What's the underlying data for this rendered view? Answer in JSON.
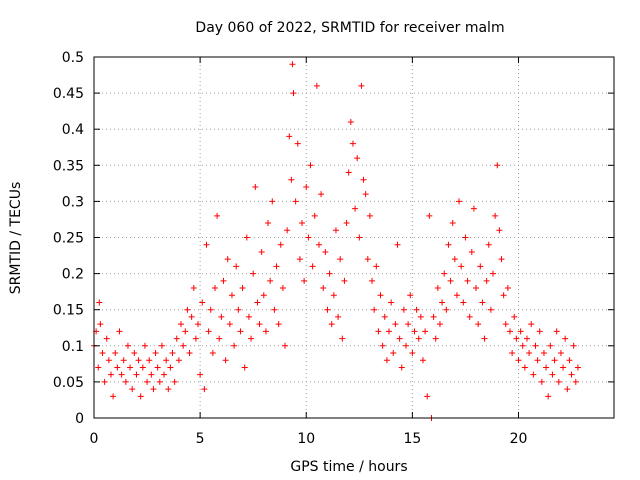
{
  "chart_data": {
    "type": "scatter",
    "title": "Day 060 of 2022, SRMTID for receiver malm",
    "xlabel": "GPS time / hours",
    "ylabel": "SRMTID / TECUs",
    "xlim": [
      0,
      24.5
    ],
    "ylim": [
      0,
      0.5
    ],
    "xticks": [
      0,
      5,
      10,
      15,
      20
    ],
    "xtick_labels": [
      "0",
      "5",
      "10",
      "15",
      "20"
    ],
    "yticks": [
      0,
      0.05,
      0.1,
      0.15,
      0.2,
      0.25,
      0.3,
      0.35,
      0.4,
      0.45,
      0.5
    ],
    "ytick_labels": [
      "0",
      "0.05",
      "0.1",
      "0.15",
      "0.2",
      "0.25",
      "0.3",
      "0.35",
      "0.4",
      "0.45",
      "0.5"
    ],
    "grid": true,
    "marker": "+",
    "series": [
      {
        "name": "SRMTID",
        "color": "#ff0000",
        "points": [
          [
            0.0,
            0.1
          ],
          [
            0.1,
            0.12
          ],
          [
            0.2,
            0.07
          ],
          [
            0.25,
            0.16
          ],
          [
            0.3,
            0.13
          ],
          [
            0.4,
            0.09
          ],
          [
            0.5,
            0.05
          ],
          [
            0.6,
            0.11
          ],
          [
            0.7,
            0.08
          ],
          [
            0.8,
            0.06
          ],
          [
            0.9,
            0.03
          ],
          [
            1.0,
            0.09
          ],
          [
            1.1,
            0.07
          ],
          [
            1.2,
            0.12
          ],
          [
            1.3,
            0.06
          ],
          [
            1.4,
            0.08
          ],
          [
            1.5,
            0.05
          ],
          [
            1.6,
            0.1
          ],
          [
            1.7,
            0.07
          ],
          [
            1.8,
            0.04
          ],
          [
            1.9,
            0.09
          ],
          [
            2.0,
            0.06
          ],
          [
            2.1,
            0.08
          ],
          [
            2.2,
            0.03
          ],
          [
            2.3,
            0.07
          ],
          [
            2.4,
            0.1
          ],
          [
            2.5,
            0.05
          ],
          [
            2.6,
            0.08
          ],
          [
            2.7,
            0.06
          ],
          [
            2.8,
            0.04
          ],
          [
            2.9,
            0.09
          ],
          [
            3.0,
            0.07
          ],
          [
            3.1,
            0.05
          ],
          [
            3.2,
            0.1
          ],
          [
            3.3,
            0.06
          ],
          [
            3.4,
            0.08
          ],
          [
            3.5,
            0.04
          ],
          [
            3.6,
            0.07
          ],
          [
            3.7,
            0.09
          ],
          [
            3.8,
            0.05
          ],
          [
            3.9,
            0.11
          ],
          [
            4.0,
            0.08
          ],
          [
            4.1,
            0.13
          ],
          [
            4.2,
            0.1
          ],
          [
            4.3,
            0.12
          ],
          [
            4.4,
            0.15
          ],
          [
            4.5,
            0.09
          ],
          [
            4.6,
            0.14
          ],
          [
            4.7,
            0.18
          ],
          [
            4.8,
            0.11
          ],
          [
            4.9,
            0.13
          ],
          [
            5.0,
            0.06
          ],
          [
            5.1,
            0.16
          ],
          [
            5.2,
            0.04
          ],
          [
            5.3,
            0.24
          ],
          [
            5.4,
            0.12
          ],
          [
            5.5,
            0.15
          ],
          [
            5.6,
            0.09
          ],
          [
            5.7,
            0.18
          ],
          [
            5.8,
            0.28
          ],
          [
            5.9,
            0.11
          ],
          [
            6.0,
            0.14
          ],
          [
            6.1,
            0.19
          ],
          [
            6.2,
            0.08
          ],
          [
            6.3,
            0.22
          ],
          [
            6.4,
            0.13
          ],
          [
            6.5,
            0.17
          ],
          [
            6.6,
            0.1
          ],
          [
            6.7,
            0.21
          ],
          [
            6.8,
            0.15
          ],
          [
            6.9,
            0.12
          ],
          [
            7.0,
            0.18
          ],
          [
            7.1,
            0.07
          ],
          [
            7.2,
            0.25
          ],
          [
            7.3,
            0.14
          ],
          [
            7.4,
            0.11
          ],
          [
            7.5,
            0.2
          ],
          [
            7.6,
            0.32
          ],
          [
            7.7,
            0.16
          ],
          [
            7.8,
            0.13
          ],
          [
            7.9,
            0.23
          ],
          [
            8.0,
            0.17
          ],
          [
            8.1,
            0.12
          ],
          [
            8.2,
            0.27
          ],
          [
            8.3,
            0.19
          ],
          [
            8.4,
            0.3
          ],
          [
            8.5,
            0.15
          ],
          [
            8.6,
            0.21
          ],
          [
            8.7,
            0.13
          ],
          [
            8.8,
            0.24
          ],
          [
            8.9,
            0.18
          ],
          [
            9.0,
            0.1
          ],
          [
            9.1,
            0.26
          ],
          [
            9.2,
            0.39
          ],
          [
            9.3,
            0.33
          ],
          [
            9.35,
            0.49
          ],
          [
            9.4,
            0.45
          ],
          [
            9.5,
            0.3
          ],
          [
            9.6,
            0.38
          ],
          [
            9.7,
            0.22
          ],
          [
            9.8,
            0.27
          ],
          [
            9.9,
            0.19
          ],
          [
            10.0,
            0.32
          ],
          [
            10.1,
            0.25
          ],
          [
            10.2,
            0.35
          ],
          [
            10.3,
            0.21
          ],
          [
            10.4,
            0.28
          ],
          [
            10.5,
            0.46
          ],
          [
            10.6,
            0.24
          ],
          [
            10.7,
            0.31
          ],
          [
            10.8,
            0.18
          ],
          [
            10.9,
            0.23
          ],
          [
            11.0,
            0.15
          ],
          [
            11.1,
            0.2
          ],
          [
            11.2,
            0.13
          ],
          [
            11.3,
            0.17
          ],
          [
            11.4,
            0.26
          ],
          [
            11.5,
            0.14
          ],
          [
            11.6,
            0.22
          ],
          [
            11.7,
            0.11
          ],
          [
            11.8,
            0.19
          ],
          [
            11.9,
            0.27
          ],
          [
            12.0,
            0.34
          ],
          [
            12.1,
            0.41
          ],
          [
            12.2,
            0.38
          ],
          [
            12.3,
            0.29
          ],
          [
            12.4,
            0.36
          ],
          [
            12.5,
            0.25
          ],
          [
            12.6,
            0.46
          ],
          [
            12.7,
            0.33
          ],
          [
            12.8,
            0.31
          ],
          [
            12.9,
            0.22
          ],
          [
            13.0,
            0.28
          ],
          [
            13.1,
            0.19
          ],
          [
            13.2,
            0.15
          ],
          [
            13.3,
            0.21
          ],
          [
            13.4,
            0.12
          ],
          [
            13.5,
            0.17
          ],
          [
            13.6,
            0.1
          ],
          [
            13.7,
            0.14
          ],
          [
            13.8,
            0.08
          ],
          [
            13.9,
            0.12
          ],
          [
            14.0,
            0.16
          ],
          [
            14.1,
            0.09
          ],
          [
            14.2,
            0.13
          ],
          [
            14.3,
            0.24
          ],
          [
            14.4,
            0.11
          ],
          [
            14.5,
            0.07
          ],
          [
            14.6,
            0.15
          ],
          [
            14.7,
            0.1
          ],
          [
            14.8,
            0.13
          ],
          [
            14.9,
            0.17
          ],
          [
            15.0,
            0.09
          ],
          [
            15.1,
            0.12
          ],
          [
            15.2,
            0.15
          ],
          [
            15.3,
            0.11
          ],
          [
            15.4,
            0.14
          ],
          [
            15.5,
            0.08
          ],
          [
            15.6,
            0.12
          ],
          [
            15.7,
            0.03
          ],
          [
            15.8,
            0.28
          ],
          [
            15.9,
            0.0
          ],
          [
            16.0,
            0.14
          ],
          [
            16.1,
            0.11
          ],
          [
            16.2,
            0.18
          ],
          [
            16.3,
            0.13
          ],
          [
            16.4,
            0.16
          ],
          [
            16.5,
            0.2
          ],
          [
            16.6,
            0.15
          ],
          [
            16.7,
            0.24
          ],
          [
            16.8,
            0.19
          ],
          [
            16.9,
            0.27
          ],
          [
            17.0,
            0.22
          ],
          [
            17.1,
            0.17
          ],
          [
            17.2,
            0.3
          ],
          [
            17.3,
            0.21
          ],
          [
            17.4,
            0.16
          ],
          [
            17.5,
            0.25
          ],
          [
            17.6,
            0.19
          ],
          [
            17.7,
            0.14
          ],
          [
            17.8,
            0.23
          ],
          [
            17.9,
            0.29
          ],
          [
            18.0,
            0.18
          ],
          [
            18.1,
            0.13
          ],
          [
            18.2,
            0.21
          ],
          [
            18.3,
            0.16
          ],
          [
            18.4,
            0.11
          ],
          [
            18.5,
            0.19
          ],
          [
            18.6,
            0.24
          ],
          [
            18.7,
            0.15
          ],
          [
            18.8,
            0.2
          ],
          [
            18.9,
            0.28
          ],
          [
            19.0,
            0.35
          ],
          [
            19.1,
            0.26
          ],
          [
            19.2,
            0.22
          ],
          [
            19.3,
            0.17
          ],
          [
            19.4,
            0.13
          ],
          [
            19.5,
            0.18
          ],
          [
            19.6,
            0.12
          ],
          [
            19.7,
            0.09
          ],
          [
            19.8,
            0.14
          ],
          [
            19.9,
            0.11
          ],
          [
            20.0,
            0.08
          ],
          [
            20.1,
            0.12
          ],
          [
            20.2,
            0.1
          ],
          [
            20.3,
            0.07
          ],
          [
            20.4,
            0.11
          ],
          [
            20.5,
            0.09
          ],
          [
            20.6,
            0.13
          ],
          [
            20.7,
            0.06
          ],
          [
            20.8,
            0.1
          ],
          [
            20.9,
            0.08
          ],
          [
            21.0,
            0.12
          ],
          [
            21.1,
            0.05
          ],
          [
            21.2,
            0.09
          ],
          [
            21.3,
            0.07
          ],
          [
            21.4,
            0.03
          ],
          [
            21.5,
            0.1
          ],
          [
            21.6,
            0.06
          ],
          [
            21.7,
            0.08
          ],
          [
            21.8,
            0.12
          ],
          [
            21.9,
            0.05
          ],
          [
            22.0,
            0.09
          ],
          [
            22.1,
            0.07
          ],
          [
            22.2,
            0.11
          ],
          [
            22.3,
            0.04
          ],
          [
            22.4,
            0.08
          ],
          [
            22.5,
            0.06
          ],
          [
            22.6,
            0.1
          ],
          [
            22.7,
            0.05
          ],
          [
            22.8,
            0.07
          ]
        ]
      }
    ]
  }
}
